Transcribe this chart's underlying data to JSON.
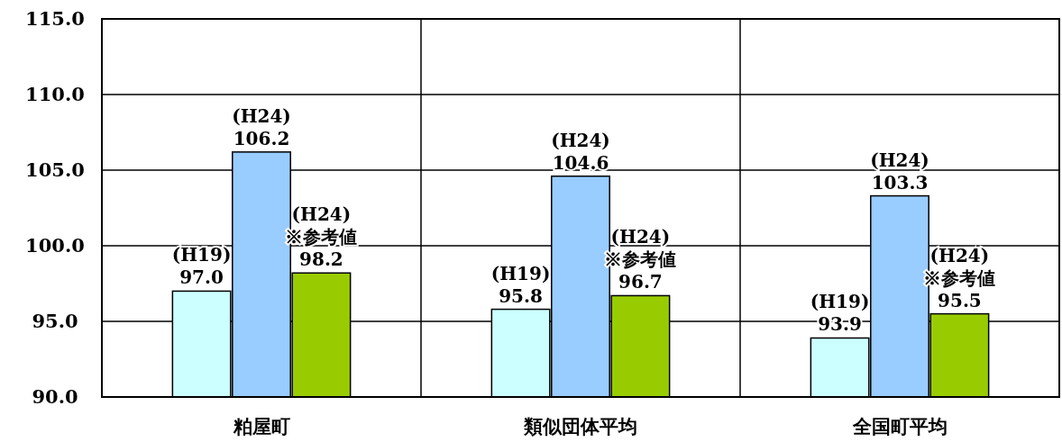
{
  "chart_data": {
    "type": "bar",
    "categories": [
      "粕屋町",
      "類似団体平均",
      "全国町平均"
    ],
    "series": [
      {
        "color": "#ccffff",
        "values": [
          97.0,
          95.8,
          93.9
        ],
        "value_labels": [
          "(H19)\n97.0",
          "(H19)\n95.8",
          "(H19)\n93.9"
        ]
      },
      {
        "color": "#99ccff",
        "values": [
          106.2,
          104.6,
          103.3
        ],
        "value_labels": [
          "(H24)\n106.2",
          "(H24)\n104.6",
          "(H24)\n103.3"
        ]
      },
      {
        "color": "#99cc00",
        "values": [
          98.2,
          96.7,
          95.5
        ],
        "value_labels": [
          "(H24)\n※参考値\n98.2",
          "(H24)\n※参考値\n96.7",
          "(H24)\n※参考値\n95.5"
        ]
      }
    ],
    "ylim": [
      90,
      115
    ],
    "yticks": [
      {
        "value": 90,
        "label": "90.0"
      },
      {
        "value": 95,
        "label": "95.0"
      },
      {
        "value": 100,
        "label": "100.0"
      },
      {
        "value": 105,
        "label": "105.0"
      },
      {
        "value": 110,
        "label": "110.0"
      },
      {
        "value": 115,
        "label": "115.0"
      }
    ],
    "grid": true
  }
}
